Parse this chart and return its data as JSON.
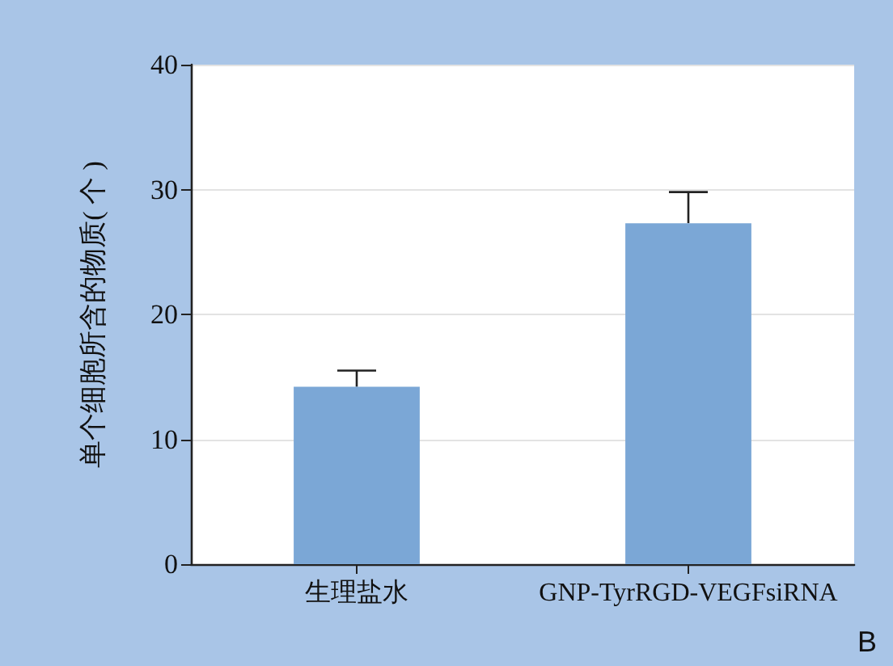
{
  "chart_data": {
    "type": "bar",
    "ylabel": "单个细胞所含的物质( 个 )",
    "categories": [
      "生理盐水",
      "GNP-TyrRGD-VEGFsiRNA"
    ],
    "values": [
      14.2,
      27.3
    ],
    "color": "#7ba7d6",
    "errors": [
      [
        14.2,
        15.5
      ],
      [
        27.3,
        29.8
      ]
    ],
    "ylim": [
      0,
      40
    ],
    "yticks": [
      0,
      10,
      20,
      30,
      40
    ],
    "grid": "y",
    "annotations": [
      "B"
    ]
  }
}
